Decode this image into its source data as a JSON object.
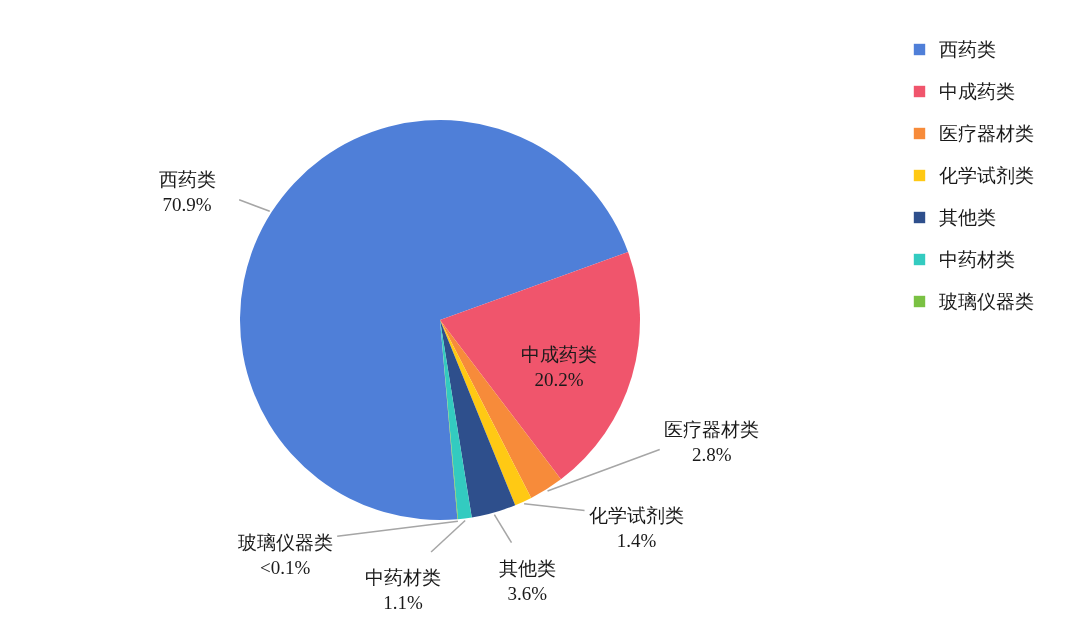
{
  "chart_data": {
    "type": "pie",
    "categories": [
      "西药类",
      "中成药类",
      "医疗器材类",
      "化学试剂类",
      "其他类",
      "中药材类",
      "玻璃仪器类"
    ],
    "values": [
      70.9,
      20.2,
      2.8,
      1.4,
      3.6,
      1.1,
      0.05
    ],
    "value_labels": [
      "70.9%",
      "20.2%",
      "2.8%",
      "1.4%",
      "3.6%",
      "1.1%",
      "<0.1%"
    ],
    "colors": [
      "#4f7fd8",
      "#f0556c",
      "#f78b3a",
      "#ffc914",
      "#2e4f8c",
      "#33cbc0",
      "#7ac143"
    ],
    "legend": "right"
  }
}
